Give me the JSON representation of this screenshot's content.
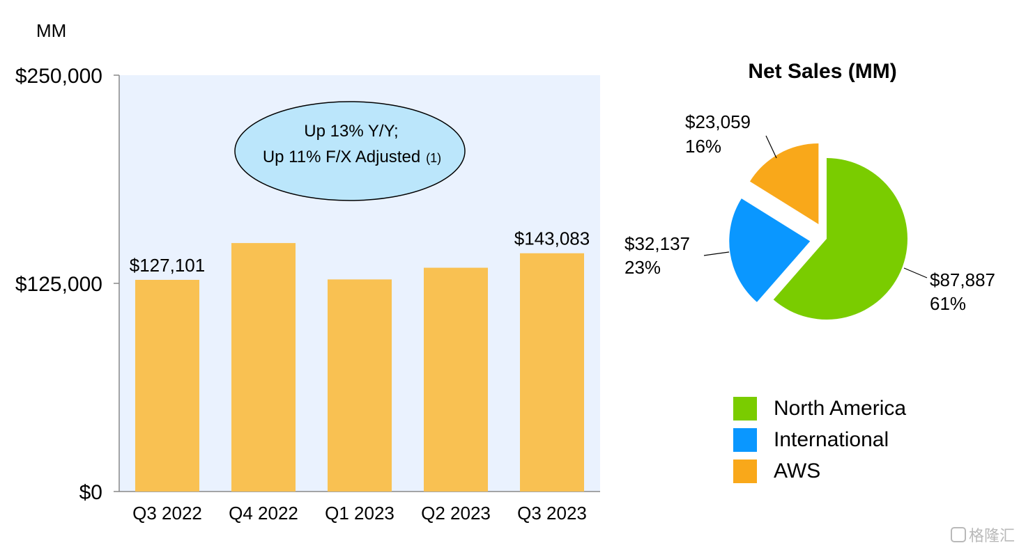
{
  "chart_data": [
    {
      "type": "bar",
      "unit_label": "MM",
      "categories": [
        "Q3 2022",
        "Q4 2022",
        "Q1 2023",
        "Q2 2023",
        "Q3 2023"
      ],
      "values": [
        127101,
        149204,
        127358,
        134383,
        143083
      ],
      "data_labels": [
        "$127,101",
        "",
        "",
        "",
        "$143,083"
      ],
      "ylim": [
        0,
        250000
      ],
      "y_ticks": [
        {
          "value": 0,
          "label": "$0"
        },
        {
          "value": 125000,
          "label": "$125,000"
        },
        {
          "value": 250000,
          "label": "$250,000"
        }
      ],
      "bar_color": "#F9C152",
      "plot_bg": "#EAF2FE",
      "annotation": {
        "line1": "Up 13% Y/Y;",
        "line2": "Up 11% F/X Adjusted",
        "footnote": "(1)"
      }
    },
    {
      "type": "pie",
      "title": "Net Sales (MM)",
      "slices": [
        {
          "name": "North America",
          "value": 87887,
          "label": "$87,887",
          "pct": "61%",
          "color": "#7ACC00"
        },
        {
          "name": "International",
          "value": 32137,
          "label": "$32,137",
          "pct": "23%",
          "color": "#0A97FF"
        },
        {
          "name": "AWS",
          "value": 23059,
          "label": "$23,059",
          "pct": "16%",
          "color": "#F9A81A"
        }
      ],
      "legend_position": "bottom"
    }
  ],
  "watermark": "格隆汇"
}
